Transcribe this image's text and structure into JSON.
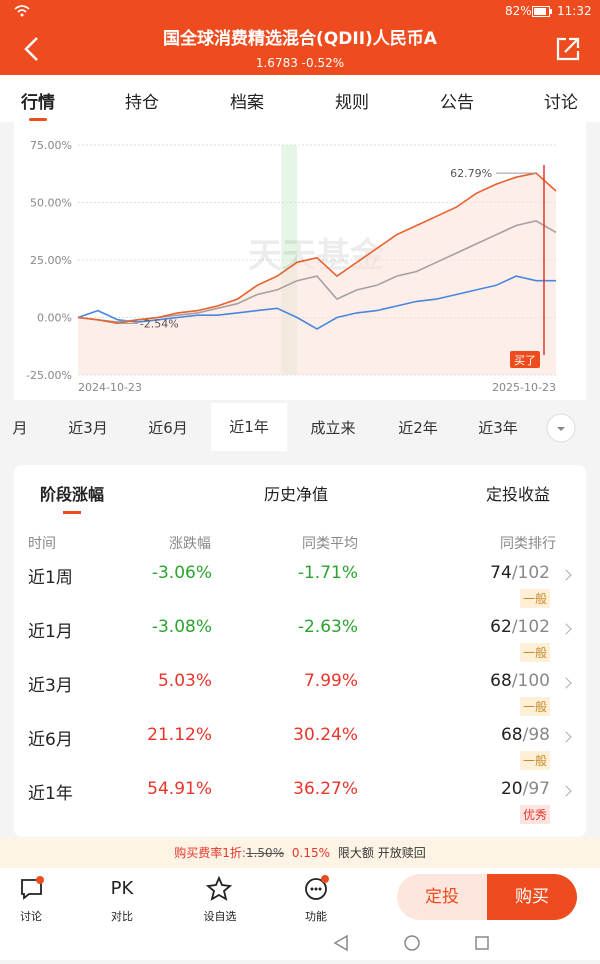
{
  "status_bar": {
    "battery": "82%",
    "time": "11:32"
  },
  "header": {
    "title": "国全球消费精选混合(QDII)人民币A",
    "subtitle": "1.6783 -0.52%"
  },
  "tabs": {
    "items": [
      "行情",
      "持仓",
      "档案",
      "规则",
      "公告",
      "讨论"
    ],
    "selected": 0
  },
  "chart_data": {
    "type": "line",
    "x_labels": [
      "2024-10-23",
      "2025-10-23"
    ],
    "ylim": [
      -25,
      75
    ],
    "yticks": [
      {
        "value": 75,
        "label": "75.00%"
      },
      {
        "value": 50,
        "label": "50.00%"
      },
      {
        "value": 25,
        "label": "25.00%"
      },
      {
        "value": 0,
        "label": "0.00%"
      },
      {
        "value": -25,
        "label": "-25.00%"
      }
    ],
    "grid": true,
    "series": [
      {
        "color": "#e8602c",
        "values": [
          0,
          -1,
          -2.54,
          -1,
          0,
          2,
          3,
          5,
          8,
          14,
          18,
          24,
          26,
          18,
          24,
          30,
          36,
          40,
          44,
          48,
          54,
          58,
          61,
          62.79,
          55
        ]
      },
      {
        "color": "#a8a0a0",
        "values": [
          0,
          -1,
          -2,
          -1,
          0,
          1,
          2,
          4,
          6,
          10,
          12,
          16,
          18,
          8,
          12,
          14,
          18,
          20,
          24,
          28,
          32,
          36,
          40,
          42,
          37
        ]
      },
      {
        "color": "#4a86de",
        "values": [
          0,
          3,
          -1,
          -2,
          -1,
          0,
          1,
          1,
          2,
          3,
          4,
          0,
          -5,
          0,
          2,
          3,
          5,
          7,
          8,
          10,
          12,
          14,
          18,
          16,
          16
        ]
      }
    ],
    "annotations": [
      "62.79%",
      "-2.54%"
    ],
    "watermark": "天天基金",
    "buy_marker": "买了"
  },
  "periods": {
    "items": [
      "月",
      "近3月",
      "近6月",
      "近1年",
      "成立来",
      "近2年",
      "近3年"
    ],
    "selected": 3
  },
  "section_tabs": {
    "items": [
      "阶段涨幅",
      "历史净值",
      "定投收益"
    ],
    "selected": 0
  },
  "table": {
    "headers": [
      "时间",
      "涨跌幅",
      "同类平均",
      "同类排行"
    ],
    "rows": [
      {
        "period": "近1周",
        "change": "-3.06%",
        "average": "-1.71%",
        "rank": 74,
        "total": 102,
        "grade": "一般"
      },
      {
        "period": "近1月",
        "change": "-3.08%",
        "average": "-2.63%",
        "rank": 62,
        "total": 102,
        "grade": "一般"
      },
      {
        "period": "近3月",
        "change": "5.03%",
        "average": "7.99%",
        "rank": 68,
        "total": 100,
        "grade": "一般"
      },
      {
        "period": "近6月",
        "change": "21.12%",
        "average": "30.24%",
        "rank": 68,
        "total": 98,
        "grade": "一般"
      },
      {
        "period": "近1年",
        "change": "54.91%",
        "average": "36.27%",
        "rank": 20,
        "total": 97,
        "grade": "优秀"
      }
    ]
  },
  "fee": {
    "label": "购买费率1折:",
    "original": "1.50%",
    "discounted": "0.15%",
    "note": "限大额 开放赎回"
  },
  "bottom_nav": {
    "items": [
      {
        "label": "讨论"
      },
      {
        "icon": "PK",
        "label": "对比"
      },
      {
        "label": "设自选"
      },
      {
        "label": "功能"
      }
    ],
    "buttons": [
      "定投",
      "购买"
    ]
  }
}
